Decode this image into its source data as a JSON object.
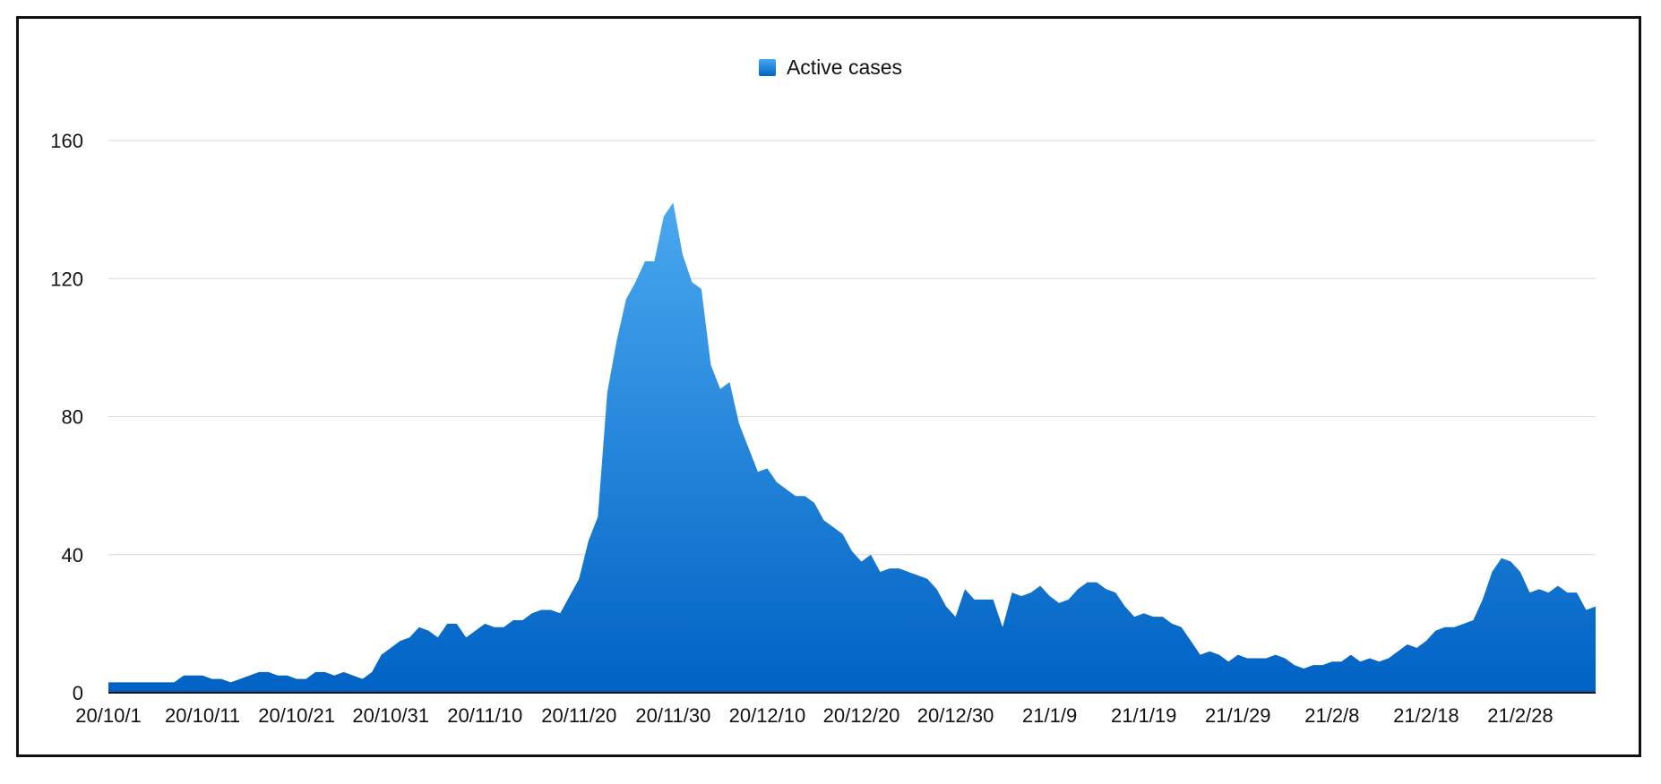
{
  "colors": {
    "area_top": "#4aa8ef",
    "area_bottom": "#0062c4",
    "grid": "#d9d9d9",
    "axis": "#111111"
  },
  "chart_data": {
    "type": "area",
    "series": [
      {
        "name": "Active cases",
        "start_date": "2020-10-01",
        "values": [
          3,
          3,
          3,
          3,
          3,
          3,
          3,
          3,
          5,
          5,
          5,
          4,
          4,
          3,
          4,
          5,
          6,
          6,
          5,
          5,
          4,
          4,
          6,
          6,
          5,
          6,
          5,
          4,
          6,
          11,
          13,
          15,
          16,
          19,
          18,
          16,
          20,
          20,
          16,
          18,
          20,
          19,
          19,
          21,
          21,
          23,
          24,
          24,
          23,
          28,
          33,
          44,
          51,
          87,
          102,
          114,
          119,
          125,
          125,
          138,
          142,
          127,
          119,
          117,
          95,
          88,
          90,
          78,
          71,
          64,
          65,
          61,
          59,
          57,
          57,
          55,
          50,
          48,
          46,
          41,
          38,
          40,
          35,
          36,
          36,
          35,
          34,
          33,
          30,
          25,
          22,
          30,
          27,
          27,
          27,
          19,
          29,
          28,
          29,
          31,
          28,
          26,
          27,
          30,
          32,
          32,
          30,
          29,
          25,
          22,
          23,
          22,
          22,
          20,
          19,
          15,
          11,
          12,
          11,
          9,
          11,
          10,
          10,
          10,
          11,
          10,
          8,
          7,
          8,
          8,
          9,
          9,
          11,
          9,
          10,
          9,
          10,
          12,
          14,
          13,
          15,
          18,
          19,
          19,
          20,
          21,
          27,
          35,
          39,
          38,
          35,
          29,
          30,
          29,
          31,
          29,
          29,
          24,
          25
        ]
      }
    ],
    "x_tick_labels": [
      "20/10/1",
      "20/10/11",
      "20/10/21",
      "20/10/31",
      "20/11/10",
      "20/11/20",
      "20/11/30",
      "20/12/10",
      "20/12/20",
      "20/12/30",
      "21/1/9",
      "21/1/19",
      "21/1/29",
      "21/2/8",
      "21/2/18",
      "21/2/28"
    ],
    "x_tick_step_days": 10,
    "y_ticks": [
      0,
      40,
      80,
      120,
      160
    ],
    "ylim": [
      0,
      160
    ],
    "legend_position": "top-center",
    "grid": true,
    "title": "",
    "xlabel": "",
    "ylabel": ""
  }
}
